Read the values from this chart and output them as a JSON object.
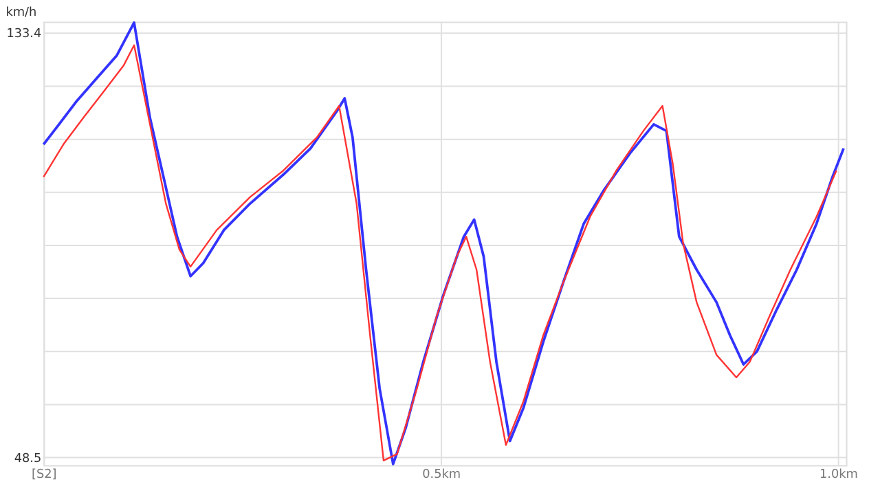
{
  "chart_data": {
    "type": "line",
    "ylabel": "km/h",
    "xlim": [
      0,
      1.01
    ],
    "ylim": [
      47,
      135.5
    ],
    "xticks": [
      {
        "value": 0,
        "label": "[S2]"
      },
      {
        "value": 0.5,
        "label": "0.5km"
      },
      {
        "value": 1.0,
        "label": "1.0km"
      }
    ],
    "yticks": [
      48.5,
      {
        "value": 59.1,
        "label": null
      },
      {
        "value": 69.7,
        "label": null
      },
      {
        "value": 80.3,
        "label": null
      },
      {
        "value": 91.0,
        "label": null
      },
      {
        "value": 101.6,
        "label": null
      },
      {
        "value": 112.2,
        "label": null
      },
      {
        "value": 122.8,
        "label": null
      },
      133.4
    ],
    "grid": true,
    "legend": false,
    "series": [
      {
        "color": "#3333ff",
        "x": [
          0.0,
          0.017,
          0.042,
          0.067,
          0.092,
          0.114,
          0.134,
          0.151,
          0.168,
          0.185,
          0.201,
          0.227,
          0.26,
          0.302,
          0.336,
          0.369,
          0.379,
          0.389,
          0.406,
          0.423,
          0.44,
          0.456,
          0.478,
          0.503,
          0.529,
          0.542,
          0.554,
          0.57,
          0.587,
          0.604,
          0.629,
          0.654,
          0.68,
          0.705,
          0.738,
          0.768,
          0.784,
          0.8,
          0.822,
          0.847,
          0.864,
          0.881,
          0.898,
          0.923,
          0.948,
          0.973,
          0.993,
          1.007
        ],
        "values": [
          111.0,
          114.5,
          119.7,
          124.2,
          128.7,
          135.3,
          116.3,
          104.5,
          92.6,
          84.7,
          87.3,
          93.9,
          99.2,
          105.0,
          110.2,
          117.6,
          120.2,
          112.4,
          86.0,
          62.3,
          47.2,
          54.5,
          67.6,
          80.8,
          92.6,
          96.0,
          88.6,
          67.6,
          51.8,
          58.4,
          71.6,
          83.4,
          95.2,
          101.8,
          109.2,
          115.0,
          113.7,
          92.6,
          86.0,
          79.5,
          72.9,
          67.1,
          69.7,
          78.1,
          86.0,
          95.2,
          104.5,
          110.2
        ]
      },
      {
        "color": "#ff3333",
        "x": [
          0.0,
          0.025,
          0.05,
          0.076,
          0.101,
          0.114,
          0.134,
          0.154,
          0.171,
          0.185,
          0.218,
          0.26,
          0.302,
          0.344,
          0.372,
          0.394,
          0.411,
          0.428,
          0.445,
          0.47,
          0.495,
          0.52,
          0.532,
          0.545,
          0.562,
          0.582,
          0.604,
          0.629,
          0.654,
          0.688,
          0.721,
          0.755,
          0.779,
          0.792,
          0.805,
          0.822,
          0.847,
          0.872,
          0.889,
          0.914,
          0.94,
          0.973,
          0.998
        ],
        "values": [
          104.5,
          111.0,
          116.3,
          121.6,
          126.8,
          130.8,
          115.0,
          99.2,
          90.0,
          86.6,
          93.9,
          100.5,
          105.8,
          112.4,
          118.7,
          99.2,
          72.9,
          47.9,
          49.2,
          62.3,
          76.8,
          88.6,
          92.6,
          86.0,
          67.6,
          51.0,
          59.7,
          72.9,
          83.4,
          96.6,
          105.8,
          113.7,
          118.7,
          107.1,
          91.3,
          79.5,
          69.0,
          64.5,
          67.6,
          76.8,
          86.0,
          96.6,
          105.8
        ]
      }
    ]
  }
}
